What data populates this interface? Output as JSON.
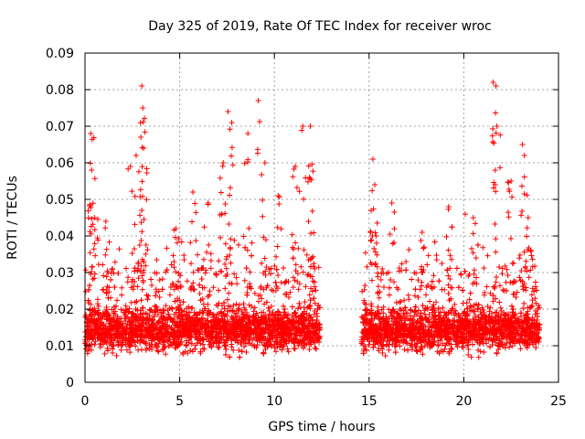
{
  "chart_data": {
    "type": "scatter",
    "title": "Day 325 of 2019, Rate Of TEC Index for receiver wroc",
    "xlabel": "GPS time / hours",
    "ylabel": "ROTI / TECUs",
    "xlim": [
      0,
      25
    ],
    "ylim": [
      0,
      0.09
    ],
    "xticks": [
      "0",
      "5",
      "10",
      "15",
      "20",
      "25"
    ],
    "yticks": [
      "0",
      "0.01",
      "0.02",
      "0.03",
      "0.04",
      "0.05",
      "0.06",
      "0.07",
      "0.08",
      "0.09"
    ],
    "grid": true,
    "marker": "+",
    "color": "#ff0000",
    "series": [
      {
        "segments": [
          [
            0.0,
            12.4
          ],
          [
            14.6,
            24.0
          ]
        ],
        "x": [
          0.3,
          0.35,
          0.5,
          1.1,
          2.4,
          2.7,
          2.95,
          3.0,
          3.05,
          3.1,
          4.8,
          5.7,
          6.5,
          7.3,
          7.55,
          7.75,
          8.6,
          9.15,
          9.5,
          10.2,
          11.1,
          11.5,
          11.85,
          11.9,
          15.2,
          15.3,
          16.2,
          17.8,
          19.2,
          20.5,
          21.55,
          21.7,
          21.75,
          22.5,
          23.1,
          23.2,
          23.4
        ],
        "y": [
          0.068,
          0.058,
          0.045,
          0.044,
          0.059,
          0.062,
          0.067,
          0.081,
          0.075,
          0.064,
          0.042,
          0.052,
          0.049,
          0.06,
          0.074,
          0.071,
          0.068,
          0.077,
          0.06,
          0.051,
          0.059,
          0.07,
          0.056,
          0.07,
          0.061,
          0.054,
          0.049,
          0.041,
          0.048,
          0.045,
          0.082,
          0.081,
          0.07,
          0.055,
          0.065,
          0.062,
          0.045
        ]
      }
    ]
  }
}
